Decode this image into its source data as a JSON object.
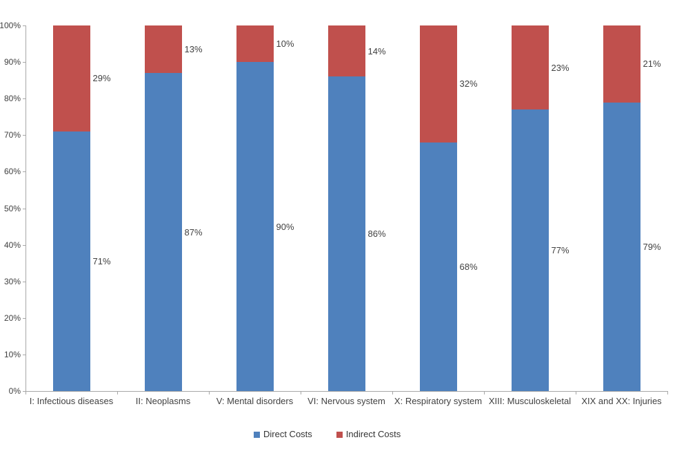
{
  "chart_data": {
    "type": "bar",
    "subtype": "stacked-100-percent",
    "orientation": "vertical",
    "title": "",
    "xlabel": "",
    "ylabel": "",
    "categories": [
      "I: Infectious diseases",
      "II: Neoplasms",
      "V: Mental disorders",
      "VI: Nervous system",
      "X: Respiratory system",
      "XIII: Musculoskeletal",
      "XIX and XX: Injuries"
    ],
    "series": [
      {
        "name": "Direct Costs",
        "color": "#4F81BD",
        "values": [
          71,
          87,
          90,
          86,
          68,
          77,
          79
        ],
        "labels": [
          "71%",
          "87%",
          "90%",
          "86%",
          "68%",
          "77%",
          "79%"
        ]
      },
      {
        "name": "Indirect Costs",
        "color": "#C0504D",
        "values": [
          29,
          13,
          10,
          14,
          32,
          23,
          21
        ],
        "labels": [
          "29%",
          "13%",
          "10%",
          "14%",
          "32%",
          "23%",
          "21%"
        ]
      }
    ],
    "y_ticks": [
      "100%",
      "90%",
      "80%",
      "70%",
      "60%",
      "50%",
      "40%",
      "30%",
      "20%",
      "10%",
      "0%"
    ],
    "ylim": [
      0,
      100
    ],
    "grid": false,
    "legend_position": "bottom",
    "colors": {
      "axis": "#A6A6A6",
      "label_text": "#404040",
      "background": "#FFFFFF"
    }
  }
}
